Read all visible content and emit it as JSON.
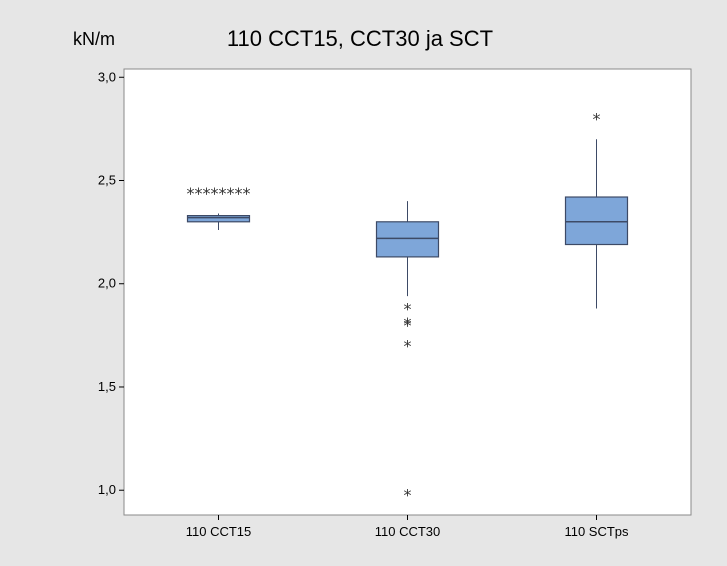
{
  "chart_data": {
    "type": "boxplot",
    "title": "110 CCT15, CCT30 ja SCT",
    "ylabel": "kN/m",
    "xlabel": "",
    "ylim": [
      0.88,
      3.04
    ],
    "yticks": [
      1.0,
      1.5,
      2.0,
      2.5,
      3.0
    ],
    "ytick_labels": [
      "1,0",
      "1,5",
      "2,0",
      "2,5",
      "3,0"
    ],
    "grid": false,
    "box_color": "#7ea6d9",
    "box_stroke": "#3d4a66",
    "categories": [
      "110 CCT15",
      "110 CCT30",
      "110 SCTps"
    ],
    "boxes": [
      {
        "category": "110 CCT15",
        "q1": 2.3,
        "median": 2.32,
        "q3": 2.33,
        "whisker_low": 2.26,
        "whisker_high": 2.34,
        "outliers": [
          2.44,
          2.44,
          2.44,
          2.44,
          2.44,
          2.44,
          2.44,
          2.44
        ]
      },
      {
        "category": "110 CCT30",
        "q1": 2.13,
        "median": 2.22,
        "q3": 2.3,
        "whisker_low": 1.94,
        "whisker_high": 2.4,
        "outliers": [
          1.88,
          1.81,
          1.8,
          1.7,
          0.98
        ]
      },
      {
        "category": "110 SCTps",
        "q1": 2.19,
        "median": 2.3,
        "q3": 2.42,
        "whisker_low": 1.88,
        "whisker_high": 2.7,
        "outliers": [
          2.8
        ]
      }
    ]
  }
}
